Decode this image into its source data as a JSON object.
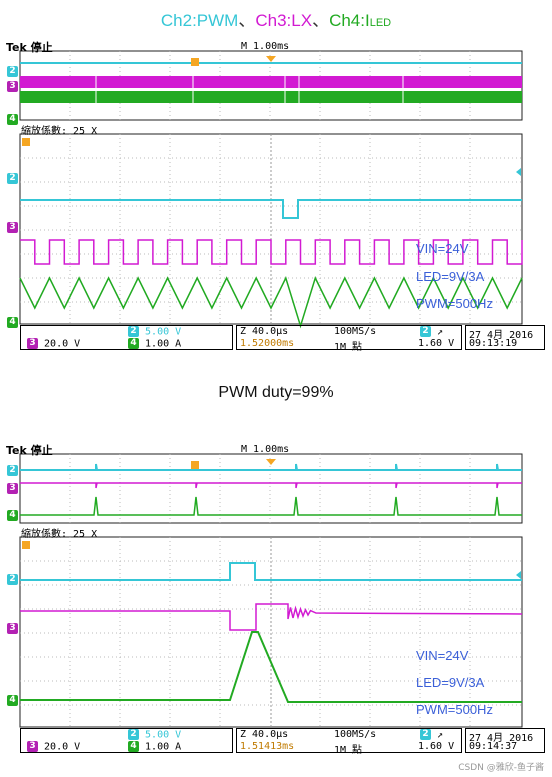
{
  "title": {
    "ch2": "Ch2:PWM",
    "sep1": "、",
    "ch3": "Ch3:LX",
    "sep2": "、",
    "ch4_main": "Ch4:I",
    "ch4_sub": "LED"
  },
  "middle_title": "PWM duty=99%",
  "footer": "CSDN @雅欣-鱼子酱",
  "colors": {
    "ch2": "#35c6d6",
    "ch3": "#d21ad2",
    "ch4": "#22aa22",
    "annotation": "#3a5fd8"
  },
  "chart_data": [
    {
      "type": "line",
      "header": {
        "brand": "Tek",
        "status": "停止",
        "timebase": "M 1.00ms"
      },
      "zoom_label": "縮放係數: 25 X",
      "annotations": [
        "VIN=24V",
        "LED=9V/3A",
        "PWM=500Hz"
      ],
      "status_bar": {
        "ch3": "20.0 V",
        "ch2": "5.00 V",
        "ch4": "1.00 A",
        "zoom_time": "Z 40.0µs",
        "trigger_pos": "1.52000ms",
        "rate": "100MS/s",
        "points": "1M 點",
        "trig_ch": "2",
        "trig_level": "1.60 V",
        "date": "27 4月  2016",
        "time": "09:13:19"
      },
      "channel_markers": [
        "2",
        "3",
        "4"
      ],
      "pwm_duty": 0.99,
      "ch3_pulses": 17,
      "ch4_triangles": 17
    },
    {
      "type": "line",
      "header": {
        "brand": "Tek",
        "status": "停止",
        "timebase": "M 1.00ms"
      },
      "zoom_label": "縮放係數: 25 X",
      "annotations": [
        "VIN=24V",
        "LED=9V/3A",
        "PWM=500Hz"
      ],
      "status_bar": {
        "ch3": "20.0 V",
        "ch2": "5.00 V",
        "ch4": "1.00 A",
        "zoom_time": "Z 40.0µs",
        "trigger_pos": "1.51413ms",
        "rate": "100MS/s",
        "points": "1M 點",
        "trig_ch": "2",
        "trig_level": "1.60 V",
        "date": "27 4月  2016",
        "time": "09:14:37"
      },
      "channel_markers": [
        "2",
        "3",
        "4"
      ],
      "pwm_duty": 0.99
    }
  ]
}
